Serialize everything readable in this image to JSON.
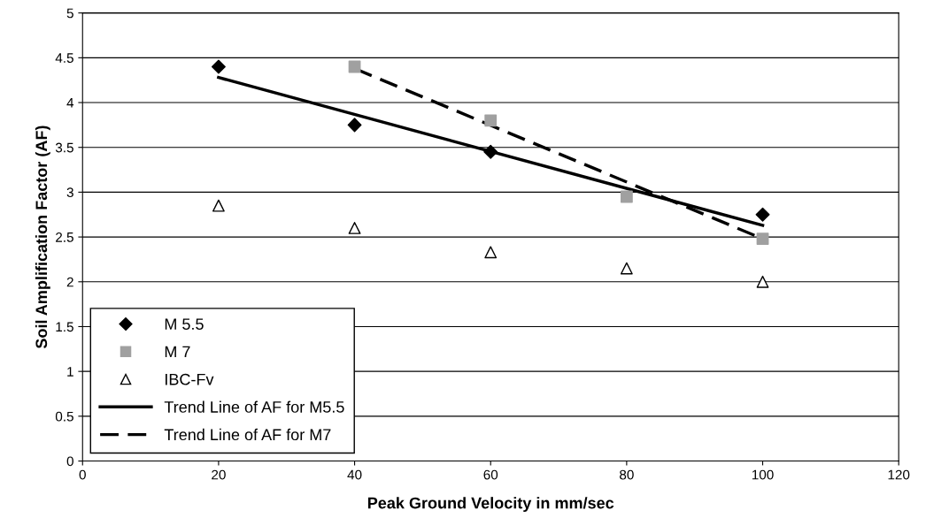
{
  "chart_data": {
    "type": "scatter",
    "xlabel": "Peak Ground Velocity in mm/sec",
    "ylabel": "Soil Amplification Factor (AF)",
    "xlim": [
      0,
      120
    ],
    "xticks": [
      0,
      20,
      40,
      60,
      80,
      100,
      120
    ],
    "ylim": [
      0,
      5
    ],
    "yticks": [
      0,
      0.5,
      1,
      1.5,
      2,
      2.5,
      3,
      3.5,
      4,
      4.5,
      5
    ],
    "grid": "y",
    "legend": "bottom left",
    "series": [
      {
        "name": "M 5.5",
        "marker": "diamond",
        "color": "#000000",
        "x": [
          20,
          40,
          60,
          100
        ],
        "values": [
          4.4,
          3.75,
          3.45,
          2.75
        ]
      },
      {
        "name": "M 7",
        "marker": "square",
        "color": "#a0a0a0",
        "x": [
          40,
          60,
          80,
          100
        ],
        "values": [
          4.4,
          3.8,
          2.95,
          2.48
        ]
      },
      {
        "name": "IBC-Fv",
        "marker": "triangle",
        "color": "#000000",
        "x": [
          20,
          40,
          60,
          80,
          100
        ],
        "values": [
          2.85,
          2.6,
          2.33,
          2.15,
          2.0
        ]
      },
      {
        "name": "Trend Line of AF for M5.5",
        "type": "line",
        "line_style": "solid",
        "color": "#000000",
        "x": [
          20,
          100
        ],
        "values": [
          4.28,
          2.63
        ]
      },
      {
        "name": "Trend Line of AF for M7",
        "type": "line",
        "line_style": "dashed",
        "color": "#000000",
        "x": [
          40,
          100
        ],
        "values": [
          4.38,
          2.48
        ]
      }
    ]
  }
}
